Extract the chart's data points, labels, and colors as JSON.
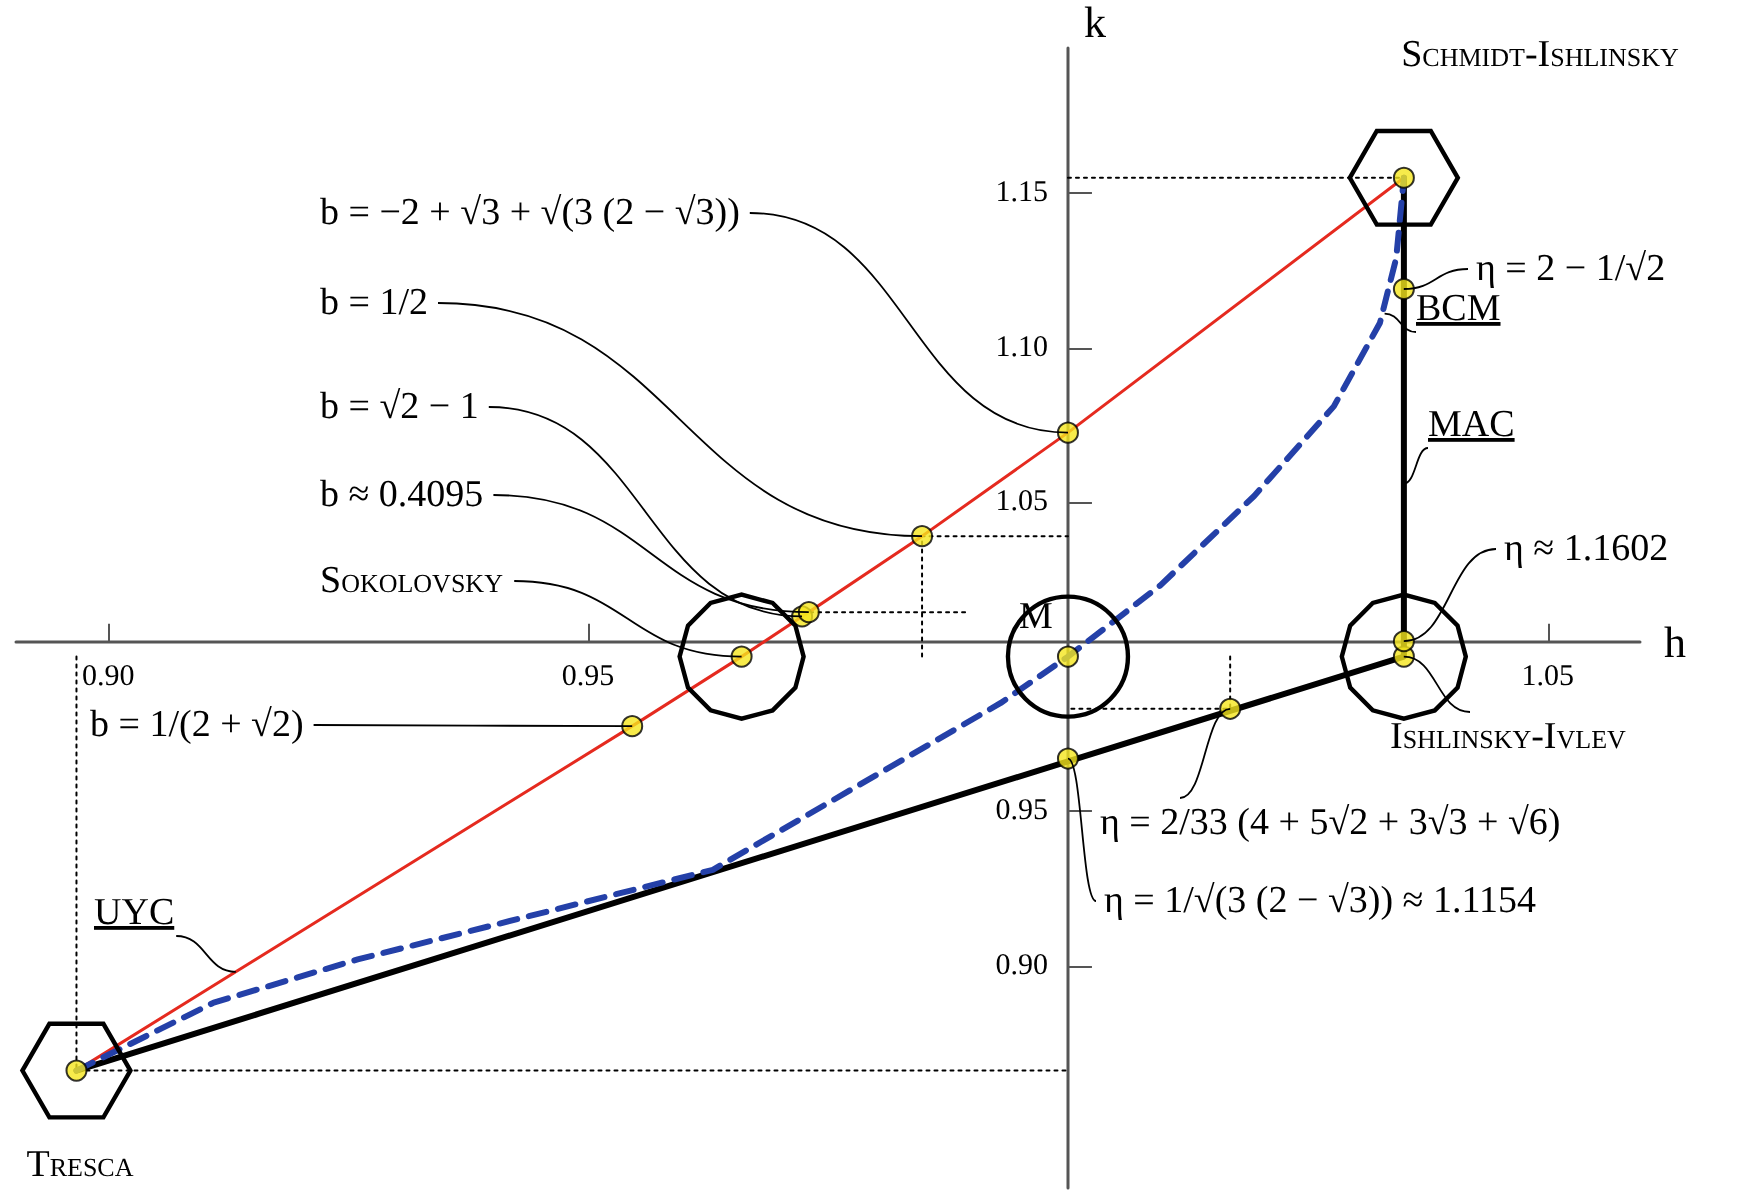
{
  "chart_data": {
    "type": "line",
    "xlabel": "h",
    "ylabel": "k",
    "xlim": [
      0.8904,
      1.0596
    ],
    "ylim": [
      0.828,
      1.197
    ],
    "xticks": [
      {
        "value": 0.9,
        "label": "0.90"
      },
      0.95,
      1.05
    ],
    "yticks": [
      {
        "value": 0.9,
        "label": "0.90"
      },
      0.95,
      1.05,
      {
        "value": 1.1,
        "label": "1.10"
      },
      1.15
    ],
    "grid": false,
    "series": [
      {
        "type": "line",
        "color": "#000000",
        "line_style": "dotted",
        "marker": "none",
        "x": [
          0.8967,
          0.8967,
          1.0
        ],
        "values": [
          1.0,
          0.866,
          0.866
        ]
      },
      {
        "type": "line",
        "color": "#000000",
        "line_style": "dotted",
        "marker": "none",
        "x": [
          1.0,
          1.035
        ],
        "values": [
          1.155,
          1.155
        ]
      },
      {
        "type": "line",
        "color": "#000000",
        "line_style": "dotted",
        "marker": "none",
        "x": [
          0.9848,
          0.9848,
          1.0
        ],
        "values": [
          1.0,
          1.039,
          1.039
        ]
      },
      {
        "type": "line",
        "color": "#000000",
        "line_style": "dotted",
        "marker": "none",
        "x": [
          0.9723,
          0.9894
        ],
        "values": [
          1.0144,
          1.0144
        ]
      },
      {
        "type": "line",
        "color": "#000000",
        "line_style": "dotted",
        "marker": "none",
        "x": [
          1.0169,
          1.0169,
          1.0
        ],
        "values": [
          1.0,
          0.9831,
          0.9831
        ]
      },
      {
        "color": "#e52a1f",
        "line_style": "solid",
        "marker": "none",
        "x": [
          0.8967,
          0.9133,
          0.9546,
          0.966,
          0.9723,
          0.973,
          0.9848,
          1.0,
          1.035
        ],
        "values": [
          0.866,
          0.898,
          0.9775,
          1.0,
          1.013,
          1.0144,
          1.039,
          1.0725,
          1.155
        ]
      },
      {
        "type": "line",
        "color": "#000000",
        "line_style": "solid",
        "marker": "none",
        "x": [
          0.8967,
          1.035,
          1.035
        ],
        "values": [
          0.866,
          1.0,
          1.155
        ]
      },
      {
        "type": "line",
        "color": "#2440a8",
        "line_style": "dashed",
        "marker": "none",
        "x": [
          0.8967,
          0.911,
          0.926,
          0.963,
          0.993,
          1.0,
          1.0096,
          1.0194,
          1.0277,
          1.0325,
          1.0342,
          1.035
        ],
        "values": [
          0.866,
          0.888,
          0.902,
          0.931,
          0.985,
          1.0,
          1.023,
          1.052,
          1.081,
          1.108,
          1.129,
          1.155
        ]
      },
      {
        "type": "scatter",
        "color": "#f5e61e",
        "marker": "circle",
        "x": [
          0.8967,
          0.9546,
          0.966,
          0.9723,
          0.973,
          0.9848,
          1.0,
          1.0,
          1.0,
          1.0169,
          1.035,
          1.035,
          1.035,
          1.035
        ],
        "values": [
          0.866,
          0.9775,
          1.0,
          1.013,
          1.0144,
          1.039,
          1.0725,
          1.0,
          0.967,
          0.9831,
          1.0,
          1.005,
          1.119,
          1.155
        ]
      }
    ],
    "annotations": [
      {
        "text": "Schmidt-Ishlinsky",
        "x": 1.035,
        "y": 1.155
      },
      {
        "text": "b = −2 + √3 + √(3 (2 − √3))",
        "x": 1.0,
        "y": 1.0725
      },
      {
        "text": "b = 1/2",
        "x": 0.9848,
        "y": 1.039
      },
      {
        "text": "b = √2 − 1",
        "x": 0.9723,
        "y": 1.013
      },
      {
        "text": "b ≈ 0.4095",
        "x": 0.973,
        "y": 1.0144
      },
      {
        "text": "Sokolovsky",
        "x": 0.966,
        "y": 1.0
      },
      {
        "text": "b = 1/(2 + √2)",
        "x": 0.9546,
        "y": 0.9775
      },
      {
        "text": "UYC",
        "x": 0.9133,
        "y": 0.898
      },
      {
        "text": "M",
        "x": 1.0,
        "y": 1.0
      },
      {
        "text": "η = 2 − 1/√2",
        "x": 1.035,
        "y": 1.119
      },
      {
        "text": "BCM",
        "x": 1.033,
        "y": 1.111
      },
      {
        "text": "MAC",
        "x": 1.035,
        "y": 1.056
      },
      {
        "text": "η ≈ 1.1602",
        "x": 1.035,
        "y": 1.005
      },
      {
        "text": "Ishlinsky-Ivlev",
        "x": 1.035,
        "y": 1.0
      },
      {
        "text": "η = 2/33 (4 + 5√2 + 3√3 + √6)",
        "x": 1.0169,
        "y": 0.9831
      },
      {
        "text": "η = 1/√(3 (2 − √3)) ≈ 1.1154",
        "x": 1.0,
        "y": 0.967
      },
      {
        "text": "Tresca",
        "x": 0.8967,
        "y": 0.866
      }
    ]
  }
}
